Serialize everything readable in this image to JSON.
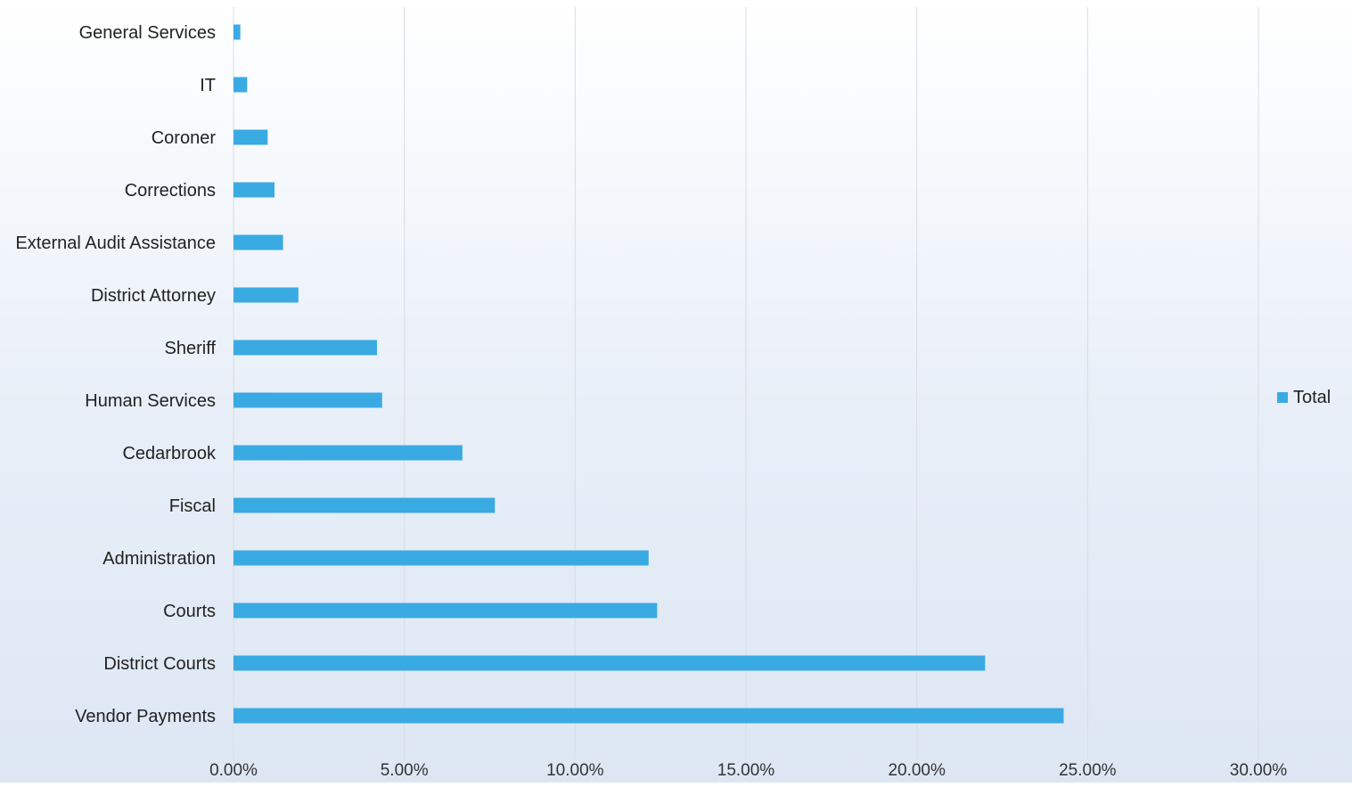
{
  "chart_data": {
    "type": "bar",
    "orientation": "horizontal",
    "categories": [
      "General Services",
      "IT",
      "Coroner",
      "Corrections",
      "External Audit Assistance",
      "District Attorney",
      "Sheriff",
      "Human Services",
      "Cedarbrook",
      "Fiscal",
      "Administration",
      "Courts",
      "District Courts",
      "Vendor Payments"
    ],
    "series": [
      {
        "name": "Total",
        "color": "#3aaae3",
        "values": [
          0.2,
          0.4,
          1.0,
          1.2,
          1.45,
          1.9,
          4.2,
          4.35,
          6.7,
          7.65,
          12.15,
          12.4,
          22.0,
          24.3
        ]
      }
    ],
    "xlim": [
      0,
      30
    ],
    "xticks": [
      "0.00%",
      "5.00%",
      "10.00%",
      "15.00%",
      "20.00%",
      "25.00%",
      "30.00%"
    ],
    "xtick_values": [
      0,
      5,
      10,
      15,
      20,
      25,
      30
    ],
    "value_unit": "percent",
    "grid": "vertical",
    "legend": "right",
    "title": "",
    "xlabel": "",
    "ylabel": ""
  }
}
